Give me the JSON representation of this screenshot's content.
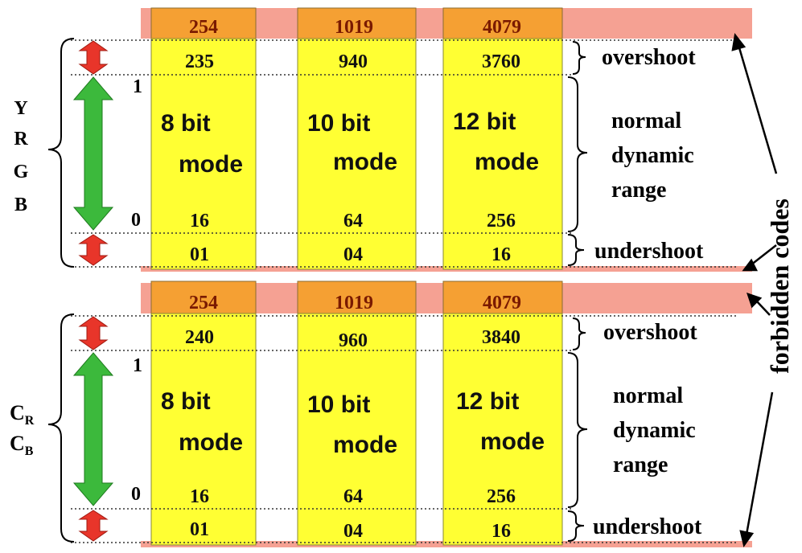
{
  "colors": {
    "forbidden_band": "#F5A193",
    "column_orange": "#F5A033",
    "column_yellow": "#FFFF33",
    "normal_arrow": "#3CB93C",
    "headroom_arrow": "#E8352A",
    "code_text": "#7A1A00",
    "label_text": "#000000"
  },
  "columns": [
    {
      "id": "8bit",
      "mode_line1": "8 bit",
      "mode_line2": "mode"
    },
    {
      "id": "10bit",
      "mode_line1": "10 bit",
      "mode_line2": "mode"
    },
    {
      "id": "12bit",
      "mode_line1": "12 bit",
      "mode_line2": "mode"
    }
  ],
  "panels": [
    {
      "id": "yrgb",
      "signal_label_lines": [
        "Y",
        "R",
        "G",
        "B"
      ],
      "top_codes": [
        "254",
        "1019",
        "4079"
      ],
      "overshoot_codes": [
        "235",
        "940",
        "3760"
      ],
      "black_codes": [
        "16",
        "64",
        "256"
      ],
      "undershoot_codes": [
        "01",
        "04",
        "16"
      ],
      "scale_one": "1",
      "scale_zero": "0",
      "overshoot_label": "overshoot",
      "normal_label_lines": [
        "normal",
        "dynamic",
        "range"
      ],
      "undershoot_label": "undershoot"
    },
    {
      "id": "cbcr",
      "signal_label_lines": [
        "C",
        "C"
      ],
      "signal_label_subscripts": [
        "R",
        "B"
      ],
      "top_codes": [
        "254",
        "1019",
        "4079"
      ],
      "overshoot_codes": [
        "240",
        "960",
        "3840"
      ],
      "black_codes": [
        "16",
        "64",
        "256"
      ],
      "undershoot_codes": [
        "01",
        "04",
        "16"
      ],
      "scale_one": "1",
      "scale_zero": "0",
      "overshoot_label": "overshoot",
      "normal_label_lines": [
        "normal",
        "dynamic",
        "range"
      ],
      "undershoot_label": "undershoot"
    }
  ],
  "forbidden_label": "forbidden codes"
}
